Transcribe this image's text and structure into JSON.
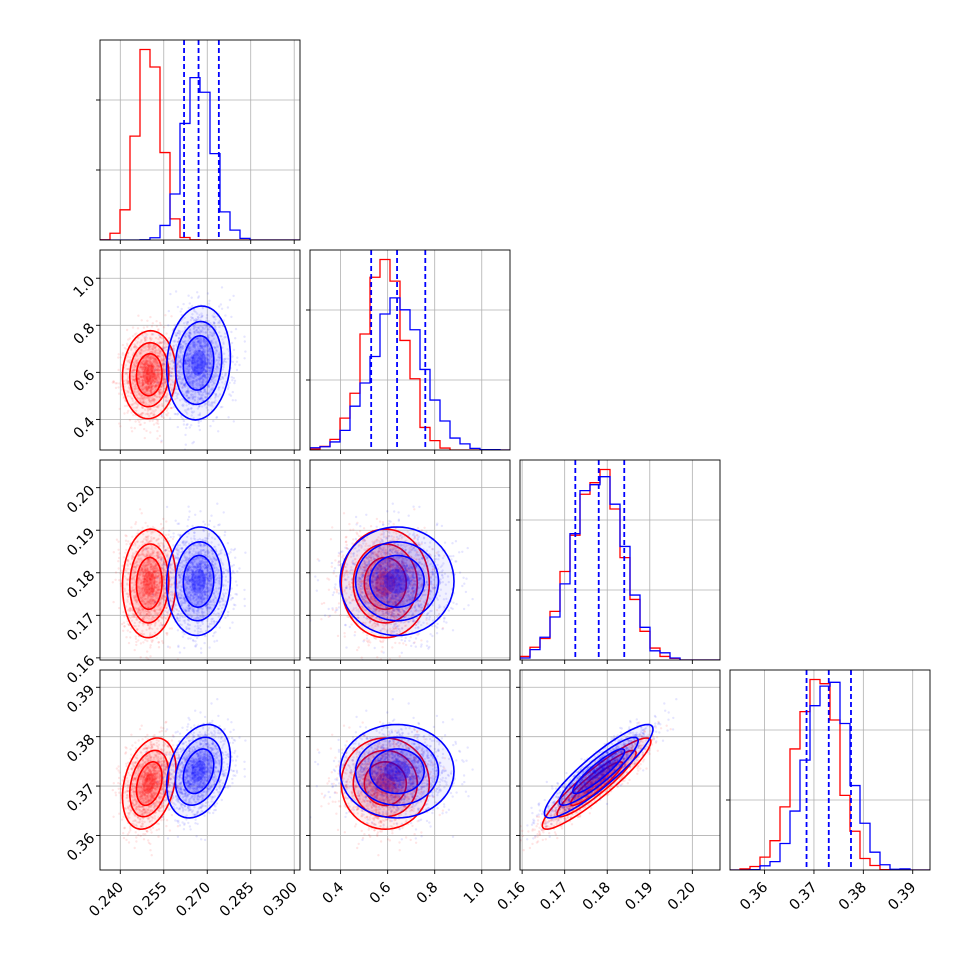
{
  "chart_data": {
    "type": "corner",
    "parameters": [
      {
        "ticks": [
          0.24,
          0.255,
          0.27,
          0.285,
          0.3
        ],
        "tick_labels": [
          "0.240",
          "0.255",
          "0.270",
          "0.285",
          "0.300"
        ],
        "range": [
          0.233,
          0.302
        ]
      },
      {
        "ticks": [
          0.4,
          0.6,
          0.8,
          1.0
        ],
        "tick_labels": [
          "0.4",
          "0.6",
          "0.8",
          "1.0"
        ],
        "range": [
          0.27,
          1.12
        ]
      },
      {
        "ticks": [
          0.16,
          0.17,
          0.18,
          0.19,
          0.2
        ],
        "tick_labels": [
          "0.16",
          "0.17",
          "0.18",
          "0.19",
          "0.20"
        ],
        "range": [
          0.1595,
          0.2065
        ]
      },
      {
        "ticks": [
          0.36,
          0.37,
          0.38,
          0.39
        ],
        "tick_labels": [
          "0.36",
          "0.37",
          "0.38",
          "0.39"
        ],
        "range": [
          0.353,
          0.3935
        ]
      }
    ],
    "series": [
      {
        "color": "#ff0000",
        "means": [
          0.25,
          0.59,
          0.1775,
          0.3705
        ],
        "sds": [
          0.0042,
          0.085,
          0.0058,
          0.0042
        ],
        "correlations": [
          [
            1,
            0.05,
            0.05,
            0.3
          ],
          [
            0.05,
            1,
            0.0,
            0.0
          ],
          [
            0.05,
            0.0,
            1,
            0.92
          ],
          [
            0.3,
            0.0,
            0.92,
            1
          ]
        ]
      },
      {
        "color": "#0000ff",
        "means": [
          0.267,
          0.64,
          0.178,
          0.373
        ],
        "sds": [
          0.005,
          0.11,
          0.0058,
          0.0043
        ],
        "correlations": [
          [
            1,
            0.1,
            0.05,
            0.3
          ],
          [
            0.1,
            1,
            0.0,
            0.0
          ],
          [
            0.05,
            0.0,
            1,
            0.9
          ],
          [
            0.3,
            0.0,
            0.9,
            1
          ]
        ]
      }
    ],
    "quantile_lines": {
      "color": "#0000ff",
      "values": [
        [
          0.262,
          0.267,
          0.274
        ],
        [
          0.53,
          0.64,
          0.76
        ],
        [
          0.1725,
          0.178,
          0.184
        ],
        [
          0.3685,
          0.373,
          0.3775
        ]
      ]
    },
    "grid": true,
    "legend": "none"
  }
}
